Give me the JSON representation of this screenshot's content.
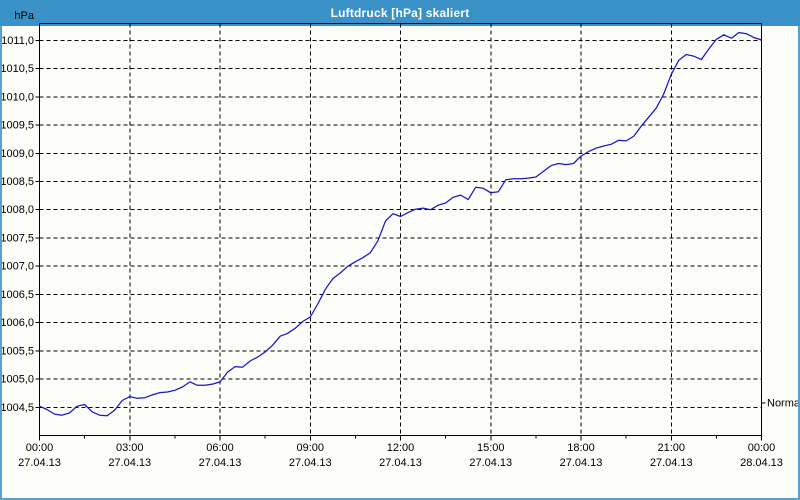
{
  "window": {
    "title": "Luftdruck [hPa] skaliert"
  },
  "colors": {
    "titlebar_bg": "#3A91C8",
    "titlebar_text": "#FFFFFF",
    "window_border": "#54A3D3",
    "content_bg": "#FCFDF8",
    "axis": "#000000",
    "grid": "#000000",
    "label_text": "#000000",
    "line": "#1818C0"
  },
  "chart_data": {
    "type": "line",
    "title": "Luftdruck [hPa] skaliert",
    "ylabel": "hPa",
    "xlabel": "",
    "grid": true,
    "legend_position": "none",
    "ylim": [
      1004.0,
      1011.3
    ],
    "xlim_hours": [
      0,
      24
    ],
    "minor_x_tick_hours": 1.5,
    "y_ticks": [
      {
        "value": 1004.5,
        "label": "1004,5"
      },
      {
        "value": 1005.0,
        "label": "1005,0"
      },
      {
        "value": 1005.5,
        "label": "1005,5"
      },
      {
        "value": 1006.0,
        "label": "1006,0"
      },
      {
        "value": 1006.5,
        "label": "1006,5"
      },
      {
        "value": 1007.0,
        "label": "1007,0"
      },
      {
        "value": 1007.5,
        "label": "1007,5"
      },
      {
        "value": 1008.0,
        "label": "1008,0"
      },
      {
        "value": 1008.5,
        "label": "1008,5"
      },
      {
        "value": 1009.0,
        "label": "1009,0"
      },
      {
        "value": 1009.5,
        "label": "1009,5"
      },
      {
        "value": 1010.0,
        "label": "1010,0"
      },
      {
        "value": 1010.5,
        "label": "1010,5"
      },
      {
        "value": 1011.0,
        "label": "1011,0"
      }
    ],
    "x_ticks": [
      {
        "hour": 0,
        "time": "00:00",
        "date": "27.04.13"
      },
      {
        "hour": 3,
        "time": "03:00",
        "date": "27.04.13"
      },
      {
        "hour": 6,
        "time": "06:00",
        "date": "27.04.13"
      },
      {
        "hour": 9,
        "time": "09:00",
        "date": "27.04.13"
      },
      {
        "hour": 12,
        "time": "12:00",
        "date": "27.04.13"
      },
      {
        "hour": 15,
        "time": "15:00",
        "date": "27.04.13"
      },
      {
        "hour": 18,
        "time": "18:00",
        "date": "27.04.13"
      },
      {
        "hour": 21,
        "time": "21:00",
        "date": "27.04.13"
      },
      {
        "hour": 24,
        "time": "00:00",
        "date": "28.04.13"
      }
    ],
    "annotations": [
      {
        "label": "Normal",
        "value": 1004.58,
        "side": "right"
      }
    ],
    "series": [
      {
        "name": "Luftdruck",
        "unit": "hPa",
        "color": "#1818C0",
        "x_hours": [
          0,
          0.25,
          0.5,
          0.75,
          1,
          1.25,
          1.5,
          1.75,
          2,
          2.25,
          2.5,
          2.75,
          3,
          3.25,
          3.5,
          3.75,
          4,
          4.25,
          4.5,
          4.75,
          5,
          5.25,
          5.5,
          5.75,
          6,
          6.25,
          6.5,
          6.75,
          7,
          7.25,
          7.5,
          7.75,
          8,
          8.25,
          8.5,
          8.75,
          9,
          9.25,
          9.5,
          9.75,
          10,
          10.25,
          10.5,
          10.75,
          11,
          11.25,
          11.5,
          11.75,
          12,
          12.25,
          12.5,
          12.75,
          13,
          13.25,
          13.5,
          13.75,
          14,
          14.25,
          14.5,
          14.75,
          15,
          15.25,
          15.5,
          15.75,
          16,
          16.25,
          16.5,
          16.75,
          17,
          17.25,
          17.5,
          17.75,
          18,
          18.25,
          18.5,
          18.75,
          19,
          19.25,
          19.5,
          19.75,
          20,
          20.25,
          20.5,
          20.75,
          21,
          21.25,
          21.5,
          21.75,
          22,
          22.25,
          22.5,
          22.75,
          23,
          23.25,
          23.5,
          23.75,
          24
        ],
        "values": [
          1004.52,
          1004.46,
          1004.38,
          1004.36,
          1004.4,
          1004.52,
          1004.55,
          1004.42,
          1004.36,
          1004.35,
          1004.45,
          1004.62,
          1004.69,
          1004.66,
          1004.67,
          1004.72,
          1004.76,
          1004.77,
          1004.8,
          1004.86,
          1004.95,
          1004.89,
          1004.89,
          1004.91,
          1004.95,
          1005.12,
          1005.22,
          1005.21,
          1005.32,
          1005.39,
          1005.48,
          1005.6,
          1005.76,
          1005.81,
          1005.9,
          1006.02,
          1006.1,
          1006.33,
          1006.59,
          1006.78,
          1006.88,
          1007.0,
          1007.08,
          1007.15,
          1007.24,
          1007.45,
          1007.8,
          1007.93,
          1007.88,
          1007.95,
          1008.01,
          1008.03,
          1008.0,
          1008.08,
          1008.12,
          1008.22,
          1008.26,
          1008.18,
          1008.4,
          1008.38,
          1008.3,
          1008.32,
          1008.53,
          1008.55,
          1008.55,
          1008.56,
          1008.58,
          1008.68,
          1008.78,
          1008.82,
          1008.8,
          1008.82,
          1008.95,
          1009.03,
          1009.09,
          1009.13,
          1009.16,
          1009.23,
          1009.22,
          1009.3,
          1009.48,
          1009.64,
          1009.8,
          1010.05,
          1010.4,
          1010.65,
          1010.75,
          1010.72,
          1010.66,
          1010.85,
          1011.02,
          1011.1,
          1011.04,
          1011.14,
          1011.12,
          1011.05,
          1011.01
        ]
      }
    ]
  }
}
